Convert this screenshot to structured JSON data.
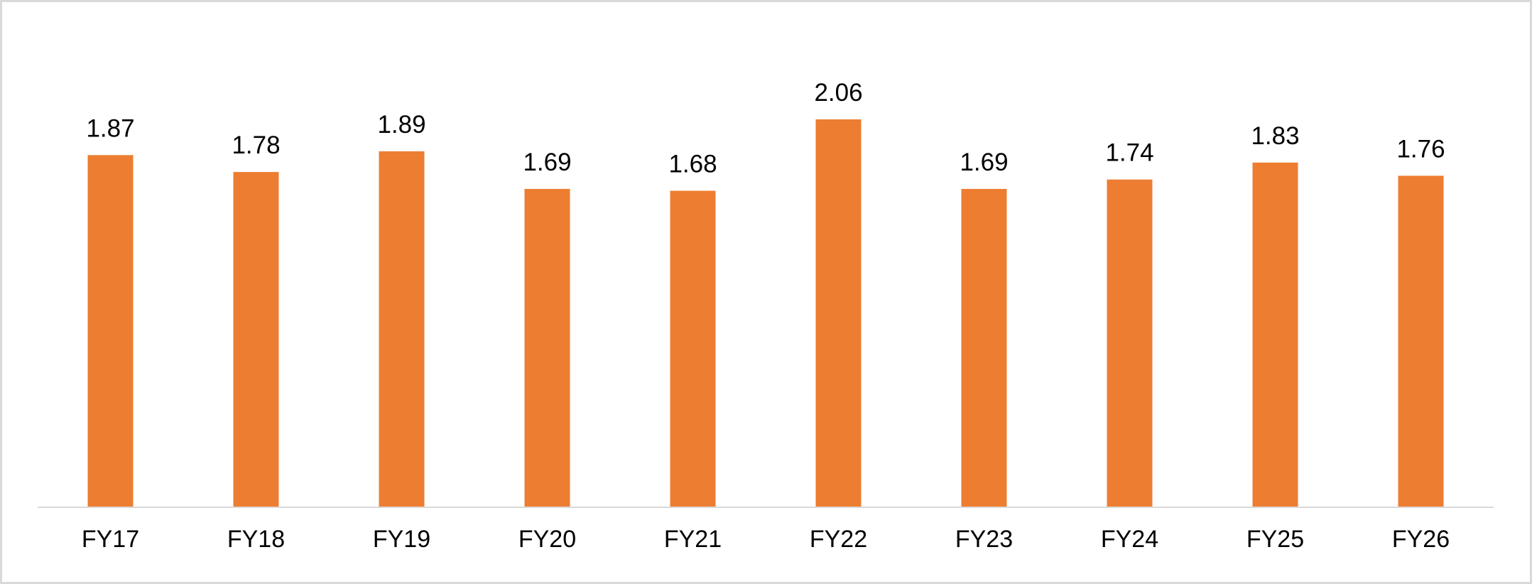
{
  "chart_data": {
    "type": "bar",
    "title": "",
    "xlabel": "",
    "ylabel": "",
    "categories": [
      "FY17",
      "FY18",
      "FY19",
      "FY20",
      "FY21",
      "FY22",
      "FY23",
      "FY24",
      "FY25",
      "FY26"
    ],
    "values": [
      1.87,
      1.78,
      1.89,
      1.69,
      1.68,
      2.06,
      1.69,
      1.74,
      1.83,
      1.76
    ],
    "value_labels": [
      "1.87",
      "1.78",
      "1.89",
      "1.69",
      "1.68",
      "2.06",
      "1.69",
      "1.74",
      "1.83",
      "1.76"
    ],
    "ylim": [
      0,
      2.06
    ],
    "grid": false,
    "legend": "none",
    "colors": {
      "bar": "#ED7D31",
      "axis": "#D9D9D9",
      "border": "#D9D9D9",
      "text": "#000000"
    }
  }
}
